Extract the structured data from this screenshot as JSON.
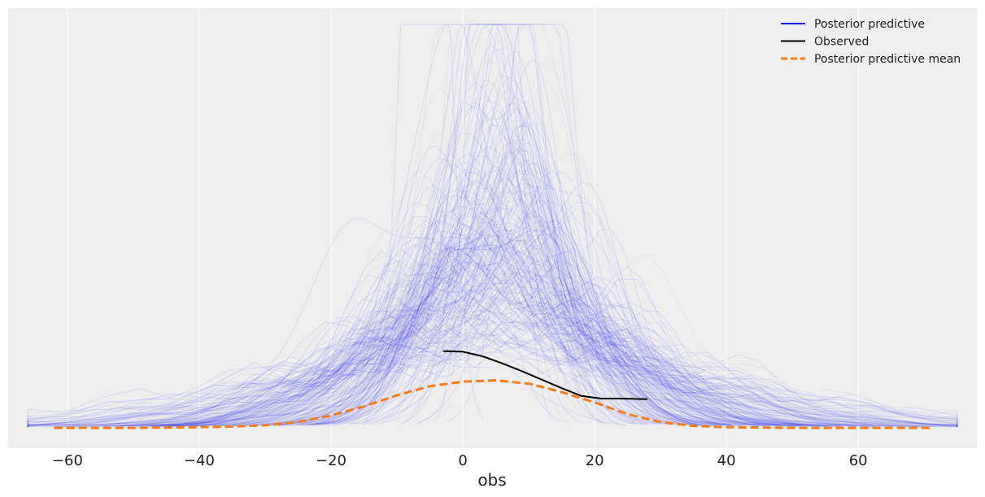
{
  "chart_data": {
    "type": "line",
    "xlabel": "obs",
    "ylabel": "",
    "xlim": [
      -69,
      78
    ],
    "ylim": [
      0,
      0.062
    ],
    "xticks": [
      -60,
      -40,
      -20,
      0,
      20,
      40,
      60
    ],
    "xtick_labels": [
      "−60",
      "−40",
      "−20",
      "0",
      "20",
      "40",
      "60"
    ],
    "grid": "vertical",
    "legend_position": "top-right",
    "legend": [
      {
        "label": "Posterior predictive",
        "color": "#0000ff",
        "style": "solid"
      },
      {
        "label": "Observed",
        "color": "#000000",
        "style": "solid"
      },
      {
        "label": "Posterior predictive mean",
        "color": "#fa7c17",
        "style": "dashed"
      }
    ],
    "series": [
      {
        "name": "Observed",
        "color": "#000000",
        "x": [
          -3,
          0,
          3,
          6,
          9,
          12,
          15,
          18,
          21,
          24,
          28
        ],
        "y": [
          0.0118,
          0.0117,
          0.011,
          0.0099,
          0.0087,
          0.0074,
          0.0061,
          0.0049,
          0.0045,
          0.0045,
          0.0044
        ]
      },
      {
        "name": "Posterior predictive mean",
        "color": "#fa7c17",
        "x": [
          -62,
          -50,
          -40,
          -35,
          -30,
          -25,
          -20,
          -15,
          -10,
          -5,
          0,
          5,
          10,
          15,
          20,
          25,
          30,
          35,
          40,
          50,
          60,
          71
        ],
        "y": [
          0.0,
          0.0,
          0.0001,
          0.0002,
          0.0004,
          0.0009,
          0.0019,
          0.0033,
          0.005,
          0.0064,
          0.0071,
          0.0073,
          0.0068,
          0.0055,
          0.0039,
          0.0021,
          0.0009,
          0.0003,
          0.0001,
          0.0,
          0.0,
          0.0
        ]
      }
    ],
    "posterior_predictive_draws": {
      "name": "Posterior predictive",
      "color": "#0000ff",
      "mean_center": 5,
      "typical_spread_sd": 14,
      "peak_density_max": 0.062
    }
  }
}
